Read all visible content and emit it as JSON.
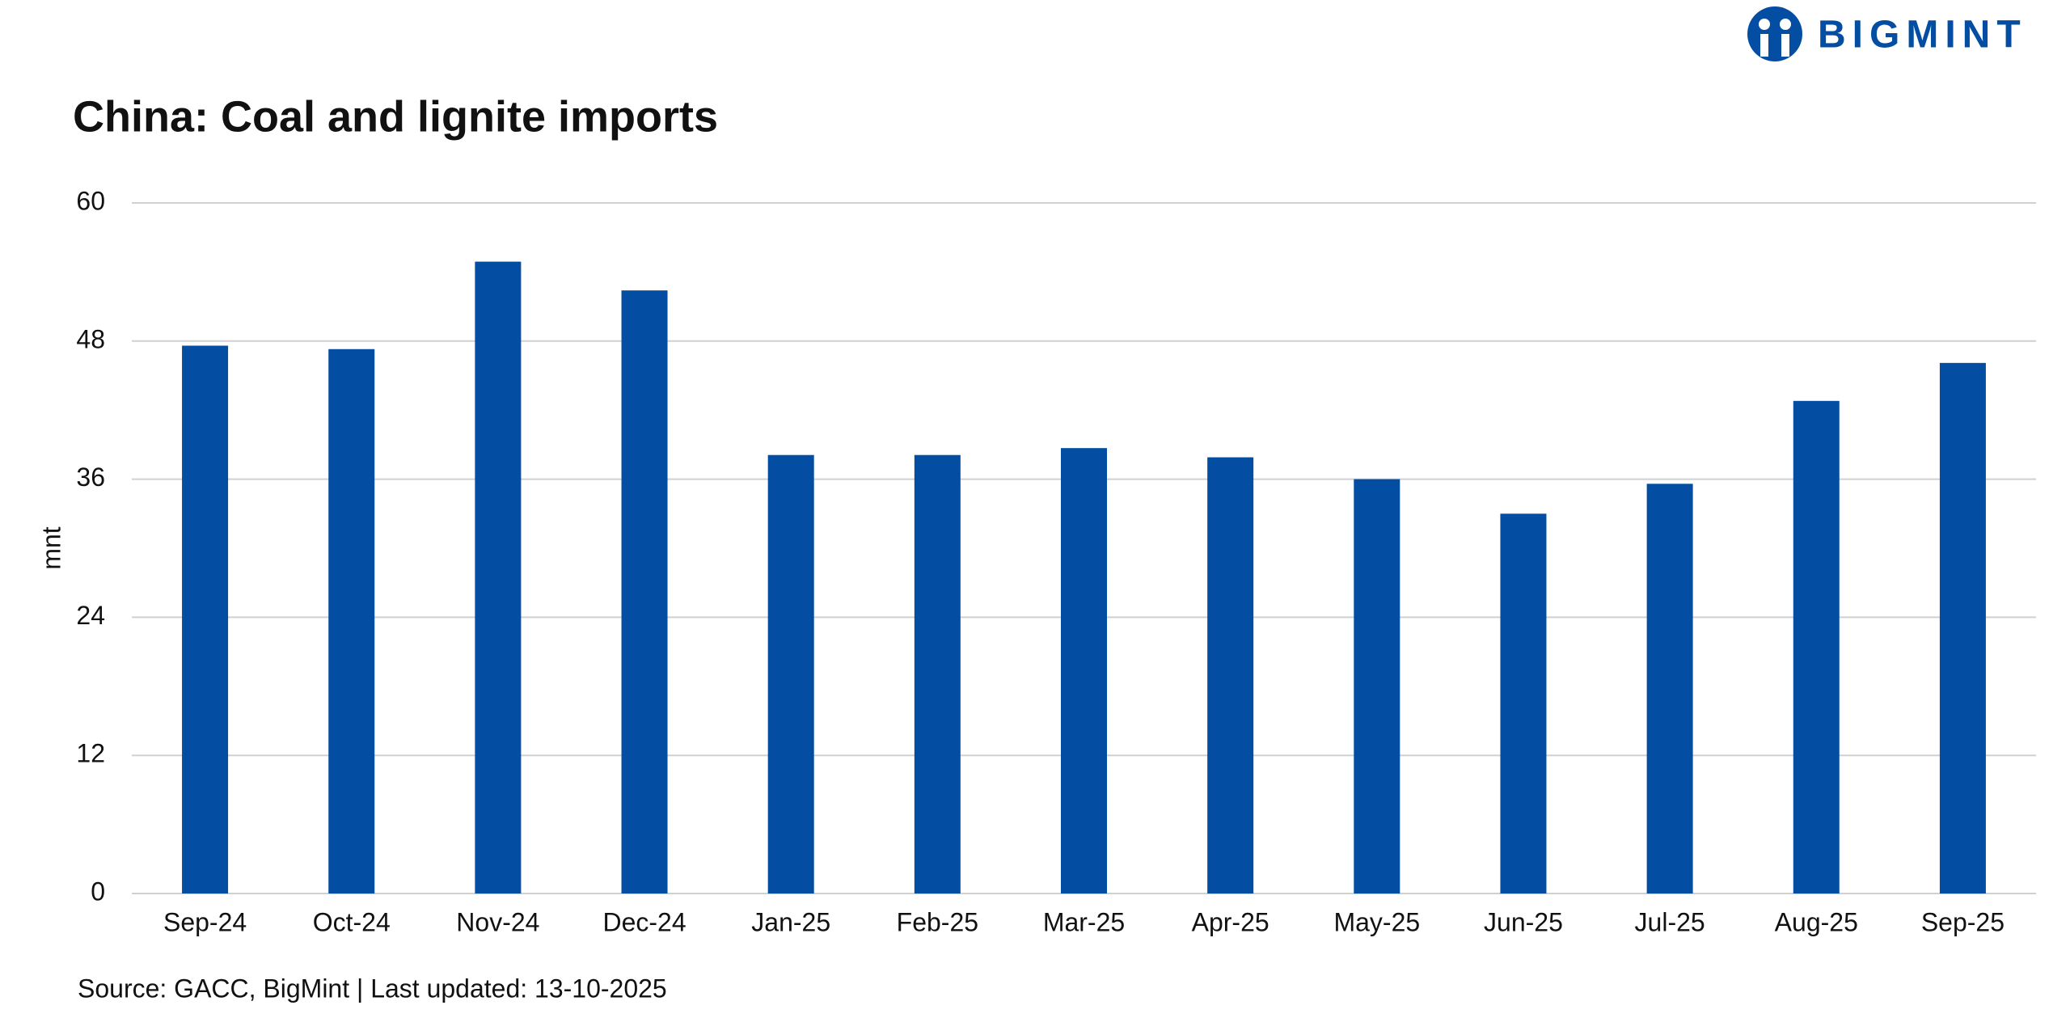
{
  "logo": "BIGMINT",
  "chart_data": {
    "type": "bar",
    "title": "China: Coal and lignite imports",
    "y_label": "mnt",
    "categories": [
      "Sep-24",
      "Oct-24",
      "Nov-24",
      "Dec-24",
      "Jan-25",
      "Feb-25",
      "Mar-25",
      "Apr-25",
      "May-25",
      "Jun-25",
      "Jul-25",
      "Aug-25",
      "Sep-25"
    ],
    "values": [
      47.6,
      47.3,
      54.9,
      52.4,
      38.1,
      38.1,
      38.7,
      37.9,
      36.0,
      33.0,
      35.6,
      42.8,
      46.1
    ],
    "color": "#034ea2",
    "ylim": [
      0,
      60
    ],
    "yticks": [
      0,
      12,
      24,
      36,
      48,
      60
    ],
    "grid": true,
    "source": "Source: GACC, BigMint | Last updated: 13-10-2025"
  }
}
